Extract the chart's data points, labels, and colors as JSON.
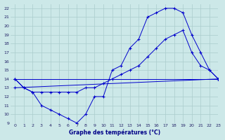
{
  "title": "Graphe des températures (°C)",
  "bg_color": "#cce8e8",
  "grid_color": "#aacccc",
  "line_color": "#0000cc",
  "xlim": [
    -0.5,
    23
  ],
  "ylim": [
    9,
    22.5
  ],
  "xticks": [
    0,
    1,
    2,
    3,
    4,
    5,
    6,
    7,
    8,
    9,
    10,
    11,
    12,
    13,
    14,
    15,
    16,
    17,
    18,
    19,
    20,
    21,
    22,
    23
  ],
  "yticks": [
    9,
    10,
    11,
    12,
    13,
    14,
    15,
    16,
    17,
    18,
    19,
    20,
    21,
    22
  ],
  "series": [
    {
      "x": [
        0,
        1,
        2,
        3,
        4,
        5,
        6,
        7,
        8,
        9,
        10,
        11,
        12,
        13,
        14,
        15,
        16,
        17,
        18,
        19,
        20,
        21,
        22,
        23
      ],
      "y": [
        14,
        13,
        12.5,
        11,
        10.5,
        10,
        9.5,
        9,
        10,
        12,
        12,
        15,
        15.5,
        17.5,
        18.5,
        21,
        21.5,
        22,
        22,
        21.5,
        19,
        17,
        15,
        14
      ]
    },
    {
      "x": [
        0,
        23
      ],
      "y": [
        14,
        14
      ]
    },
    {
      "x": [
        0,
        23
      ],
      "y": [
        13,
        14
      ]
    },
    {
      "x": [
        0,
        1,
        2,
        3,
        4,
        5,
        6,
        7,
        8,
        9,
        10,
        11,
        12,
        13,
        14,
        15,
        16,
        17,
        18,
        19,
        20,
        21,
        22,
        23
      ],
      "y": [
        14,
        13,
        12.5,
        12.5,
        12.5,
        12.5,
        12.5,
        12.5,
        13,
        13,
        13.5,
        14,
        14.5,
        15,
        15.5,
        16.5,
        17.5,
        18.5,
        19,
        19.5,
        17,
        15.5,
        15,
        14
      ]
    }
  ]
}
